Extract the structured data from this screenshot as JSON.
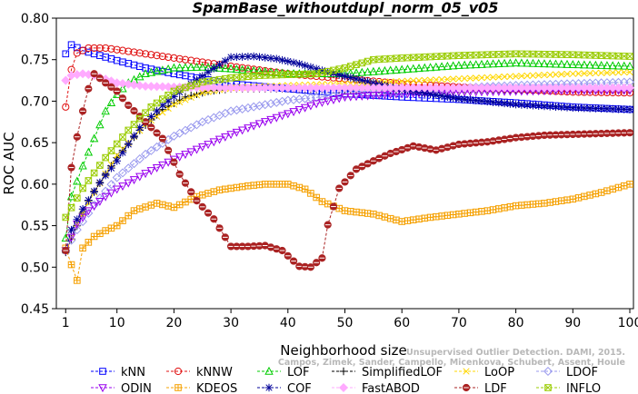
{
  "chart_data": {
    "type": "line",
    "title": "SpamBase_withoutdupl_norm_05_v05",
    "xlabel": "Neighborhood size",
    "ylabel": "ROC AUC",
    "xlim": [
      0,
      100
    ],
    "ylim": [
      0.45,
      0.8
    ],
    "xticks": [
      1,
      10,
      20,
      30,
      40,
      50,
      60,
      70,
      80,
      90,
      100
    ],
    "yticks": [
      "0.45",
      "0.50",
      "0.55",
      "0.60",
      "0.65",
      "0.70",
      "0.75",
      "0.80"
    ],
    "grid": false,
    "legend_position": "bottom",
    "watermark": [
      "Unsupervised Outlier Detection. DAMI, 2015.",
      "Campos, Zimek, Sander, Campello, Micenkova, Schubert, Assent, Houle"
    ],
    "series": [
      {
        "name": "kNN",
        "color": "#0000ff",
        "marker": "square",
        "points": [
          [
            1,
            0.757
          ],
          [
            2,
            0.768
          ],
          [
            4,
            0.761
          ],
          [
            6,
            0.757
          ],
          [
            10,
            0.749
          ],
          [
            15,
            0.74
          ],
          [
            20,
            0.733
          ],
          [
            25,
            0.727
          ],
          [
            30,
            0.721
          ],
          [
            40,
            0.715
          ],
          [
            50,
            0.709
          ],
          [
            60,
            0.705
          ],
          [
            70,
            0.702
          ],
          [
            80,
            0.698
          ],
          [
            90,
            0.693
          ],
          [
            100,
            0.69
          ]
        ]
      },
      {
        "name": "kNNW",
        "color": "#e01010",
        "marker": "circle",
        "points": [
          [
            1,
            0.693
          ],
          [
            2,
            0.738
          ],
          [
            3,
            0.758
          ],
          [
            5,
            0.764
          ],
          [
            8,
            0.764
          ],
          [
            12,
            0.76
          ],
          [
            20,
            0.752
          ],
          [
            30,
            0.742
          ],
          [
            40,
            0.733
          ],
          [
            50,
            0.727
          ],
          [
            60,
            0.721
          ],
          [
            70,
            0.717
          ],
          [
            80,
            0.714
          ],
          [
            90,
            0.711
          ],
          [
            100,
            0.71
          ]
        ]
      },
      {
        "name": "LOF",
        "color": "#00cc00",
        "marker": "triangle-up",
        "points": [
          [
            1,
            0.535
          ],
          [
            2,
            0.585
          ],
          [
            4,
            0.622
          ],
          [
            6,
            0.655
          ],
          [
            8,
            0.688
          ],
          [
            10,
            0.708
          ],
          [
            12,
            0.722
          ],
          [
            15,
            0.733
          ],
          [
            20,
            0.74
          ],
          [
            25,
            0.741
          ],
          [
            30,
            0.739
          ],
          [
            40,
            0.733
          ],
          [
            50,
            0.733
          ],
          [
            60,
            0.738
          ],
          [
            70,
            0.743
          ],
          [
            80,
            0.746
          ],
          [
            90,
            0.744
          ],
          [
            100,
            0.742
          ]
        ]
      },
      {
        "name": "SimplifiedLOF",
        "color": "#000000",
        "marker": "plus",
        "points": [
          [
            1,
            0.518
          ],
          [
            3,
            0.55
          ],
          [
            5,
            0.58
          ],
          [
            8,
            0.612
          ],
          [
            10,
            0.632
          ],
          [
            14,
            0.665
          ],
          [
            18,
            0.69
          ],
          [
            22,
            0.705
          ],
          [
            26,
            0.712
          ],
          [
            30,
            0.715
          ],
          [
            40,
            0.715
          ],
          [
            50,
            0.714
          ],
          [
            60,
            0.714
          ],
          [
            70,
            0.714
          ],
          [
            80,
            0.714
          ],
          [
            90,
            0.715
          ],
          [
            100,
            0.715
          ]
        ]
      },
      {
        "name": "LoOP",
        "color": "#ffd700",
        "marker": "x",
        "points": [
          [
            1,
            0.52
          ],
          [
            3,
            0.552
          ],
          [
            6,
            0.59
          ],
          [
            10,
            0.635
          ],
          [
            15,
            0.672
          ],
          [
            20,
            0.696
          ],
          [
            25,
            0.71
          ],
          [
            30,
            0.716
          ],
          [
            40,
            0.719
          ],
          [
            50,
            0.721
          ],
          [
            60,
            0.724
          ],
          [
            70,
            0.727
          ],
          [
            80,
            0.73
          ],
          [
            90,
            0.733
          ],
          [
            100,
            0.735
          ]
        ]
      },
      {
        "name": "LDOF",
        "color": "#9999ee",
        "marker": "diamond",
        "points": [
          [
            1,
            0.52
          ],
          [
            3,
            0.545
          ],
          [
            6,
            0.575
          ],
          [
            10,
            0.608
          ],
          [
            15,
            0.636
          ],
          [
            20,
            0.658
          ],
          [
            25,
            0.675
          ],
          [
            30,
            0.688
          ],
          [
            40,
            0.701
          ],
          [
            50,
            0.708
          ],
          [
            60,
            0.712
          ],
          [
            70,
            0.716
          ],
          [
            80,
            0.719
          ],
          [
            90,
            0.721
          ],
          [
            100,
            0.723
          ]
        ]
      },
      {
        "name": "ODIN",
        "color": "#9900ee",
        "marker": "triangle-down",
        "points": [
          [
            1,
            0.52
          ],
          [
            3,
            0.552
          ],
          [
            5,
            0.568
          ],
          [
            8,
            0.585
          ],
          [
            10,
            0.594
          ],
          [
            15,
            0.613
          ],
          [
            20,
            0.63
          ],
          [
            25,
            0.645
          ],
          [
            30,
            0.66
          ],
          [
            35,
            0.673
          ],
          [
            40,
            0.685
          ],
          [
            45,
            0.697
          ],
          [
            50,
            0.705
          ],
          [
            55,
            0.707
          ],
          [
            60,
            0.709
          ],
          [
            70,
            0.711
          ],
          [
            80,
            0.712
          ],
          [
            90,
            0.713
          ],
          [
            100,
            0.713
          ]
        ]
      },
      {
        "name": "KDEOS",
        "color": "#f5a000",
        "marker": "square-cross",
        "points": [
          [
            1,
            0.523
          ],
          [
            2,
            0.503
          ],
          [
            3,
            0.484
          ],
          [
            4,
            0.523
          ],
          [
            6,
            0.537
          ],
          [
            8,
            0.544
          ],
          [
            10,
            0.55
          ],
          [
            13,
            0.568
          ],
          [
            17,
            0.577
          ],
          [
            20,
            0.572
          ],
          [
            24,
            0.585
          ],
          [
            28,
            0.593
          ],
          [
            30,
            0.595
          ],
          [
            33,
            0.598
          ],
          [
            36,
            0.6
          ],
          [
            40,
            0.6
          ],
          [
            43,
            0.594
          ],
          [
            46,
            0.579
          ],
          [
            50,
            0.568
          ],
          [
            55,
            0.564
          ],
          [
            60,
            0.555
          ],
          [
            65,
            0.56
          ],
          [
            70,
            0.564
          ],
          [
            75,
            0.568
          ],
          [
            80,
            0.574
          ],
          [
            85,
            0.577
          ],
          [
            90,
            0.582
          ],
          [
            95,
            0.59
          ],
          [
            100,
            0.6
          ]
        ]
      },
      {
        "name": "COF",
        "color": "#000099",
        "marker": "asterisk",
        "points": [
          [
            1,
            0.52
          ],
          [
            2,
            0.545
          ],
          [
            4,
            0.57
          ],
          [
            7,
            0.602
          ],
          [
            10,
            0.628
          ],
          [
            14,
            0.668
          ],
          [
            18,
            0.695
          ],
          [
            22,
            0.716
          ],
          [
            26,
            0.735
          ],
          [
            30,
            0.753
          ],
          [
            34,
            0.754
          ],
          [
            38,
            0.751
          ],
          [
            42,
            0.745
          ],
          [
            46,
            0.737
          ],
          [
            50,
            0.73
          ],
          [
            60,
            0.714
          ],
          [
            70,
            0.703
          ],
          [
            80,
            0.696
          ],
          [
            90,
            0.692
          ],
          [
            100,
            0.69
          ]
        ]
      },
      {
        "name": "FastABOD",
        "color": "#ffaaff",
        "marker": "diamond-filled",
        "points": [
          [
            1,
            0.725
          ],
          [
            2,
            0.731
          ],
          [
            4,
            0.733
          ],
          [
            6,
            0.731
          ],
          [
            10,
            0.722
          ],
          [
            15,
            0.718
          ],
          [
            20,
            0.717
          ],
          [
            30,
            0.716
          ],
          [
            40,
            0.716
          ],
          [
            50,
            0.716
          ],
          [
            60,
            0.716
          ],
          [
            70,
            0.716
          ],
          [
            80,
            0.716
          ],
          [
            90,
            0.716
          ],
          [
            100,
            0.716
          ]
        ]
      },
      {
        "name": "LDF",
        "color": "#aa2222",
        "marker": "circle-line",
        "points": [
          [
            1,
            0.52
          ],
          [
            2,
            0.62
          ],
          [
            3,
            0.657
          ],
          [
            4,
            0.688
          ],
          [
            5,
            0.715
          ],
          [
            6,
            0.733
          ],
          [
            8,
            0.722
          ],
          [
            10,
            0.712
          ],
          [
            12,
            0.695
          ],
          [
            15,
            0.675
          ],
          [
            18,
            0.655
          ],
          [
            21,
            0.612
          ],
          [
            24,
            0.58
          ],
          [
            27,
            0.558
          ],
          [
            30,
            0.525
          ],
          [
            33,
            0.525
          ],
          [
            36,
            0.526
          ],
          [
            39,
            0.52
          ],
          [
            42,
            0.501
          ],
          [
            44,
            0.5
          ],
          [
            46,
            0.511
          ],
          [
            47,
            0.551
          ],
          [
            49,
            0.595
          ],
          [
            52,
            0.618
          ],
          [
            55,
            0.628
          ],
          [
            58,
            0.637
          ],
          [
            62,
            0.646
          ],
          [
            66,
            0.641
          ],
          [
            70,
            0.648
          ],
          [
            75,
            0.651
          ],
          [
            80,
            0.656
          ],
          [
            85,
            0.659
          ],
          [
            90,
            0.66
          ],
          [
            95,
            0.661
          ],
          [
            100,
            0.662
          ]
        ]
      },
      {
        "name": "INFLO",
        "color": "#99cc00",
        "marker": "square-x",
        "points": [
          [
            1,
            0.56
          ],
          [
            4,
            0.595
          ],
          [
            8,
            0.632
          ],
          [
            12,
            0.665
          ],
          [
            16,
            0.693
          ],
          [
            20,
            0.712
          ],
          [
            25,
            0.723
          ],
          [
            30,
            0.728
          ],
          [
            35,
            0.731
          ],
          [
            40,
            0.732
          ],
          [
            45,
            0.733
          ],
          [
            50,
            0.74
          ],
          [
            55,
            0.75
          ],
          [
            60,
            0.752
          ],
          [
            70,
            0.755
          ],
          [
            80,
            0.757
          ],
          [
            90,
            0.756
          ],
          [
            100,
            0.754
          ]
        ]
      }
    ],
    "legend_rows": [
      [
        "kNN",
        "kNNW",
        "LOF",
        "SimplifiedLOF",
        "LoOP",
        "LDOF"
      ],
      [
        "ODIN",
        "KDEOS",
        "COF",
        "FastABOD",
        "LDF",
        "INFLO"
      ]
    ]
  }
}
